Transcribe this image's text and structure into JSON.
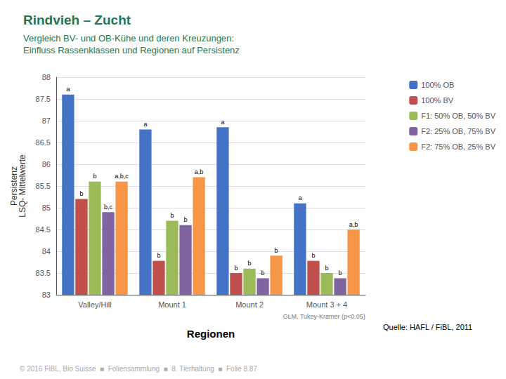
{
  "chart_data": {
    "type": "bar",
    "title": "Rindvieh – Zucht",
    "subtitle": "Vergleich BV- und OB-Kühe und deren Kreuzungen:\nEinfluss Rassenklassen und Regionen auf Persistenz",
    "xlabel": "Regionen",
    "ylabel": "Persistenz\nLSQ- Mittelwerte",
    "categories": [
      "Valley/Hill",
      "Mount 1",
      "Mount 2",
      "Mount 3 + 4"
    ],
    "series": [
      {
        "name": "100% OB",
        "color": "#4472C4",
        "values": [
          87.6,
          86.8,
          86.85,
          85.1
        ],
        "annotations": [
          "a",
          "a",
          "a",
          "a"
        ]
      },
      {
        "name": "100% BV",
        "color": "#C0504D",
        "values": [
          85.2,
          83.78,
          83.5,
          83.78
        ],
        "annotations": [
          "b",
          "b",
          "b",
          "b"
        ]
      },
      {
        "name": "F1: 50% OB, 50% BV",
        "color": "#9BBB59",
        "values": [
          85.6,
          84.7,
          83.6,
          83.5
        ],
        "annotations": [
          "b",
          "b",
          "b",
          "b"
        ]
      },
      {
        "name": "F2: 25% OB, 75% BV",
        "color": "#8064A2",
        "values": [
          84.9,
          84.6,
          83.38,
          83.38
        ],
        "annotations": [
          "b,c",
          "b",
          "b",
          "b"
        ]
      },
      {
        "name": "F2: 75% OB, 25% BV",
        "color": "#F79646",
        "values": [
          85.6,
          85.7,
          83.9,
          84.5
        ],
        "annotations": [
          "a,b,c",
          "a,b",
          "b",
          "a,b"
        ]
      }
    ],
    "ylim": [
      83,
      88
    ],
    "yticks": [
      83,
      83.5,
      84,
      84.5,
      85,
      85.5,
      86,
      86.5,
      87,
      87.5,
      88
    ],
    "grid": true,
    "legend": "right",
    "footnote": "GLM, Tukey-Kramer (p<0.05)",
    "source": "Quelle: HAFL / FiBL, 2011",
    "footer": "© 2016 FiBL, Bio Suisse  ■  Foliensammlung  ■  8. Tierhaltung  ■  Folie 8.87",
    "title_color": "#1F7650",
    "subtitle_color": "#1F7650"
  }
}
